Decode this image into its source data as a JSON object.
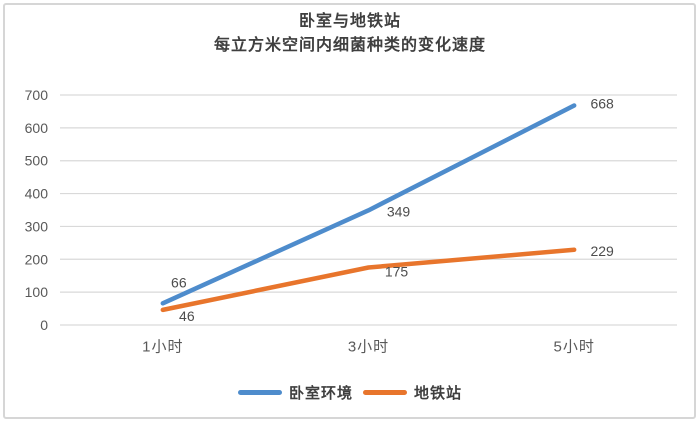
{
  "chart_data": {
    "type": "line",
    "title": "卧室与地铁站",
    "subtitle": "每立方米空间内细菌种类的变化速度",
    "categories": [
      "1小时",
      "3小时",
      "5小时"
    ],
    "series": [
      {
        "name": "卧室环境",
        "color": "#4E8CCC",
        "values": [
          66,
          349,
          668
        ]
      },
      {
        "name": "地铁站",
        "color": "#E8752C",
        "values": [
          46,
          175,
          229
        ]
      }
    ],
    "y_axis": {
      "min": 0,
      "max": 700,
      "step": 100,
      "tick_labels": [
        "0",
        "100",
        "200",
        "300",
        "400",
        "500",
        "600",
        "700"
      ]
    },
    "data_labels_shown": true,
    "grid": true,
    "gridline_color": "#d9d9d9",
    "legend_position": "bottom",
    "text_color": "#595959",
    "title_color": "#3f3f3f"
  }
}
